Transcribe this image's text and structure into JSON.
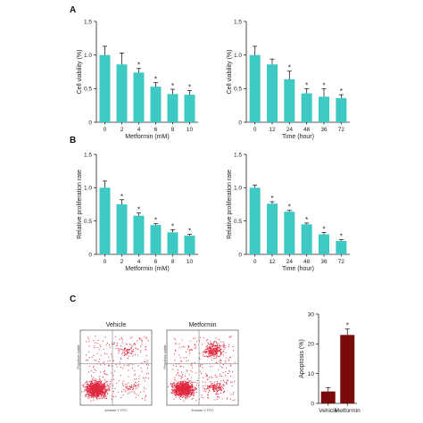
{
  "panel_labels": {
    "a": "A",
    "b": "B",
    "c": "C"
  },
  "colors": {
    "bar": "#3ec9c5",
    "apoptosis_bar": "#7b0b0b",
    "flow_dots": "#e0283f",
    "axis": "#222222"
  },
  "significance_mark": "*",
  "flow": {
    "vehicle_title": "Vehicle",
    "metformin_title": "Metformin",
    "x_axis_label": "Annexin V FITC",
    "y_axis_label": "Propidium Iodide"
  },
  "chart_data": [
    {
      "id": "A1",
      "type": "bar",
      "categories": [
        "0",
        "2",
        "4",
        "6",
        "8",
        "10"
      ],
      "values": [
        1.0,
        0.86,
        0.74,
        0.53,
        0.42,
        0.41
      ],
      "errors": [
        0.13,
        0.17,
        0.06,
        0.06,
        0.07,
        0.06
      ],
      "significant": [
        false,
        false,
        true,
        true,
        true,
        true
      ],
      "xlabel": "Metformin (mM)",
      "ylabel": "Cell viability (%)",
      "ylim": [
        0,
        1.5
      ],
      "yticks": [
        "0",
        "0.5",
        "1.0",
        "1.5"
      ]
    },
    {
      "id": "A2",
      "type": "bar",
      "categories": [
        "0",
        "12",
        "24",
        "48",
        "36",
        "72"
      ],
      "values": [
        1.0,
        0.86,
        0.64,
        0.43,
        0.38,
        0.36
      ],
      "errors": [
        0.13,
        0.08,
        0.12,
        0.07,
        0.12,
        0.05
      ],
      "significant": [
        false,
        false,
        true,
        true,
        true,
        true
      ],
      "xlabel": "Time (hour)",
      "ylabel": "Cell viability (%)",
      "ylim": [
        0,
        1.5
      ],
      "yticks": [
        "0",
        "0.5",
        "1.0",
        "1.5"
      ]
    },
    {
      "id": "B1",
      "type": "bar",
      "categories": [
        "0",
        "2",
        "4",
        "6",
        "8",
        "10"
      ],
      "values": [
        1.0,
        0.75,
        0.58,
        0.44,
        0.33,
        0.28
      ],
      "errors": [
        0.1,
        0.07,
        0.04,
        0.02,
        0.04,
        0.02
      ],
      "significant": [
        false,
        true,
        true,
        true,
        true,
        true
      ],
      "xlabel": "Metformin (mM)",
      "ylabel": "Relative proliferation rate",
      "ylim": [
        0,
        1.5
      ],
      "yticks": [
        "0",
        "0.5",
        "1.0",
        "1.5"
      ]
    },
    {
      "id": "B2",
      "type": "bar",
      "categories": [
        "0",
        "12",
        "24",
        "48",
        "36",
        "72"
      ],
      "values": [
        1.0,
        0.76,
        0.64,
        0.45,
        0.3,
        0.2
      ],
      "errors": [
        0.04,
        0.03,
        0.02,
        0.02,
        0.03,
        0.02
      ],
      "significant": [
        false,
        true,
        true,
        true,
        true,
        true
      ],
      "xlabel": "Time (hour)",
      "ylabel": "Relative proliferation rate",
      "ylim": [
        0,
        1.5
      ],
      "yticks": [
        "0",
        "0.5",
        "1.0",
        "1.5"
      ]
    },
    {
      "id": "C2",
      "type": "bar",
      "categories": [
        "Vehicle",
        "Metformin"
      ],
      "values": [
        4.0,
        23.0
      ],
      "errors": [
        1.3,
        2.0
      ],
      "significant": [
        false,
        true
      ],
      "xlabel": "",
      "ylabel": "Apoptosis (%)",
      "ylim": [
        0,
        30
      ],
      "yticks": [
        "0",
        "10",
        "20",
        "30"
      ]
    }
  ]
}
